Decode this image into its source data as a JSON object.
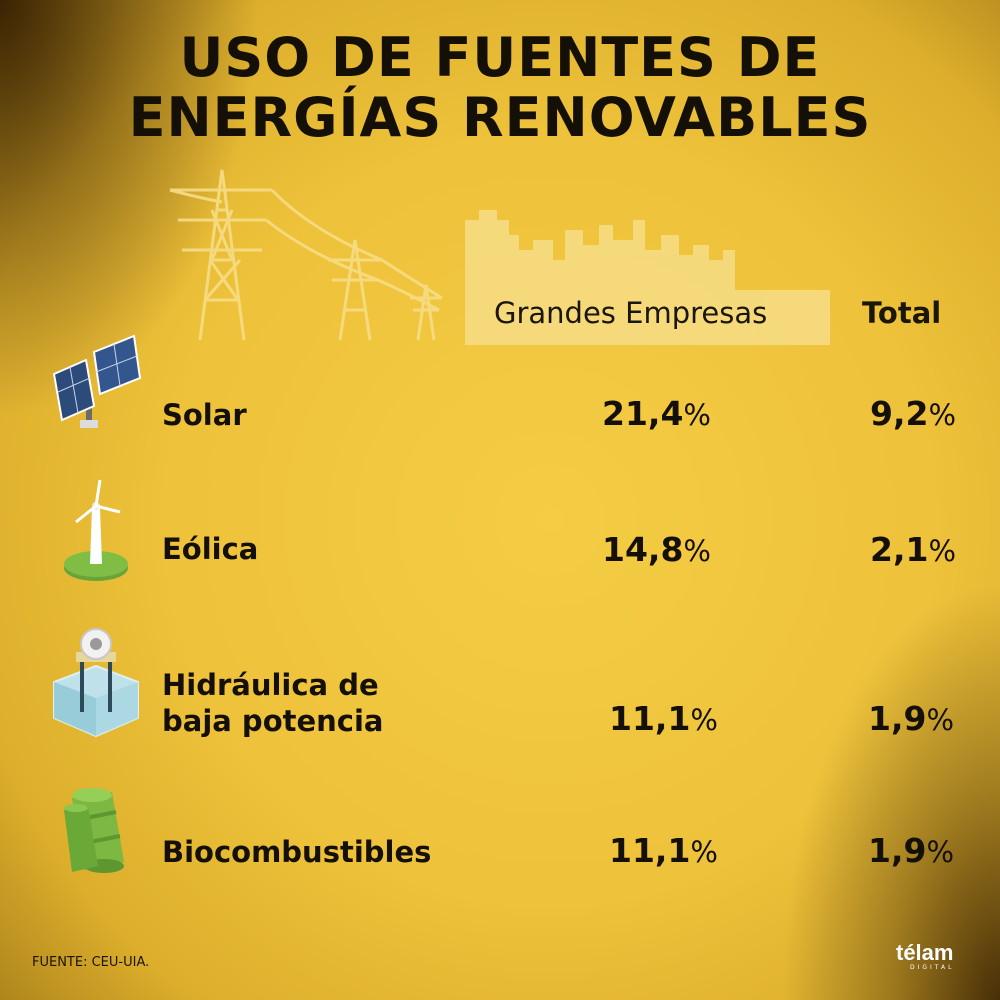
{
  "title_lines": [
    "USO DE FUENTES DE",
    "ENERGÍAS RENOVABLES"
  ],
  "columns": [
    "Grandes Empresas",
    "Total"
  ],
  "rows": [
    {
      "label_lines": [
        "Solar"
      ],
      "grandes": "21,4",
      "total": "9,2",
      "icon": "solar-panel-icon"
    },
    {
      "label_lines": [
        "Eólica"
      ],
      "grandes": "14,8",
      "total": "2,1",
      "icon": "wind-turbine-icon"
    },
    {
      "label_lines": [
        "Hidráulica de",
        "baja potencia"
      ],
      "grandes": "11,1",
      "total": "1,9",
      "icon": "hydro-turbine-icon"
    },
    {
      "label_lines": [
        "Biocombustibles"
      ],
      "grandes": "11,1",
      "total": "1,9",
      "icon": "biofuel-barrel-icon"
    }
  ],
  "percent_symbol": "%",
  "source": "FUENTE: CEU-UIA.",
  "logo": {
    "name": "télam",
    "sub": "DIGITAL"
  },
  "chart_data": {
    "type": "table",
    "title": "USO DE FUENTES DE ENERGÍAS RENOVABLES",
    "columns": [
      "Grandes Empresas",
      "Total"
    ],
    "categories": [
      "Solar",
      "Eólica",
      "Hidráulica de baja potencia",
      "Biocombustibles"
    ],
    "series": [
      {
        "name": "Grandes Empresas",
        "values": [
          21.4,
          14.8,
          11.1,
          11.1
        ]
      },
      {
        "name": "Total",
        "values": [
          9.2,
          2.1,
          1.9,
          1.9
        ]
      }
    ],
    "unit": "%",
    "source": "FUENTE: CEU-UIA."
  },
  "colors": {
    "background": "#eec23a",
    "text": "#141008",
    "art": "#f5d878"
  }
}
